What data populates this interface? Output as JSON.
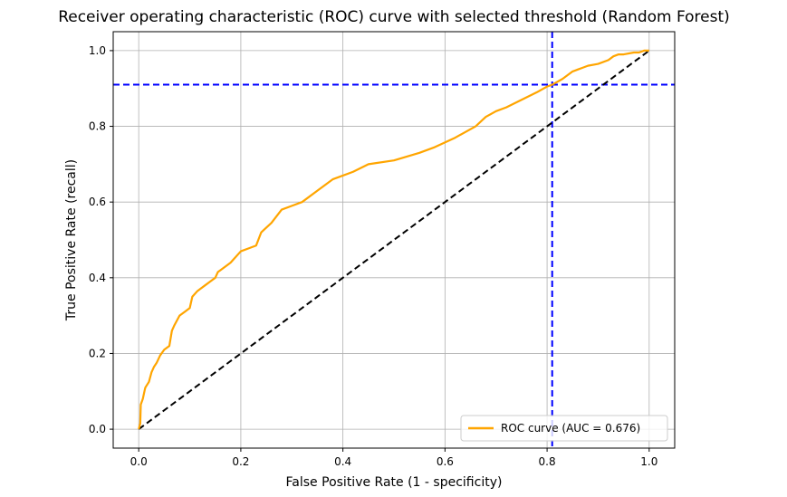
{
  "chart_data": {
    "type": "line",
    "title": "Receiver operating characteristic (ROC) curve with selected threshold (Random Forest)",
    "xlabel": "False Positive Rate (1 - specificity)",
    "ylabel": "True Positive Rate (recall)",
    "xlim": [
      -0.05,
      1.05
    ],
    "ylim": [
      -0.05,
      1.05
    ],
    "xticks": [
      "0.0",
      "0.2",
      "0.4",
      "0.6",
      "0.8",
      "1.0"
    ],
    "yticks": [
      "0.0",
      "0.2",
      "0.4",
      "0.6",
      "0.8",
      "1.0"
    ],
    "grid": true,
    "legend_position": "lower-right",
    "series": [
      {
        "name": "ROC curve (AUC = 0.676)",
        "color": "#ffa500",
        "style": "solid",
        "x": [
          0.0,
          0.003,
          0.004,
          0.008,
          0.012,
          0.013,
          0.02,
          0.025,
          0.03,
          0.035,
          0.042,
          0.05,
          0.06,
          0.065,
          0.07,
          0.08,
          0.09,
          0.1,
          0.105,
          0.115,
          0.12,
          0.13,
          0.14,
          0.15,
          0.155,
          0.16,
          0.18,
          0.2,
          0.22,
          0.23,
          0.24,
          0.26,
          0.28,
          0.3,
          0.32,
          0.35,
          0.38,
          0.42,
          0.45,
          0.5,
          0.55,
          0.58,
          0.62,
          0.66,
          0.68,
          0.7,
          0.72,
          0.75,
          0.78,
          0.8,
          0.81,
          0.83,
          0.85,
          0.86,
          0.87,
          0.88,
          0.9,
          0.92,
          0.93,
          0.94,
          0.95,
          0.97,
          0.98,
          0.99,
          1.0
        ],
        "y": [
          0.0,
          0.015,
          0.065,
          0.08,
          0.105,
          0.11,
          0.125,
          0.15,
          0.165,
          0.175,
          0.195,
          0.21,
          0.22,
          0.26,
          0.275,
          0.3,
          0.31,
          0.32,
          0.35,
          0.365,
          0.37,
          0.38,
          0.39,
          0.4,
          0.415,
          0.42,
          0.44,
          0.47,
          0.48,
          0.485,
          0.52,
          0.545,
          0.58,
          0.59,
          0.6,
          0.63,
          0.66,
          0.68,
          0.7,
          0.71,
          0.73,
          0.745,
          0.77,
          0.8,
          0.825,
          0.84,
          0.85,
          0.87,
          0.89,
          0.905,
          0.91,
          0.925,
          0.945,
          0.95,
          0.955,
          0.96,
          0.965,
          0.975,
          0.985,
          0.99,
          0.99,
          0.995,
          0.995,
          1.0,
          1.0
        ]
      },
      {
        "color": "#000000",
        "style": "dashed",
        "x": [
          0.0,
          1.0
        ],
        "y": [
          0.0,
          1.0
        ]
      }
    ],
    "reference_lines": [
      {
        "orientation": "vertical",
        "x": 0.81,
        "color": "#0000ff",
        "style": "dashed"
      },
      {
        "orientation": "horizontal",
        "y": 0.91,
        "color": "#0000ff",
        "style": "dashed"
      }
    ]
  }
}
